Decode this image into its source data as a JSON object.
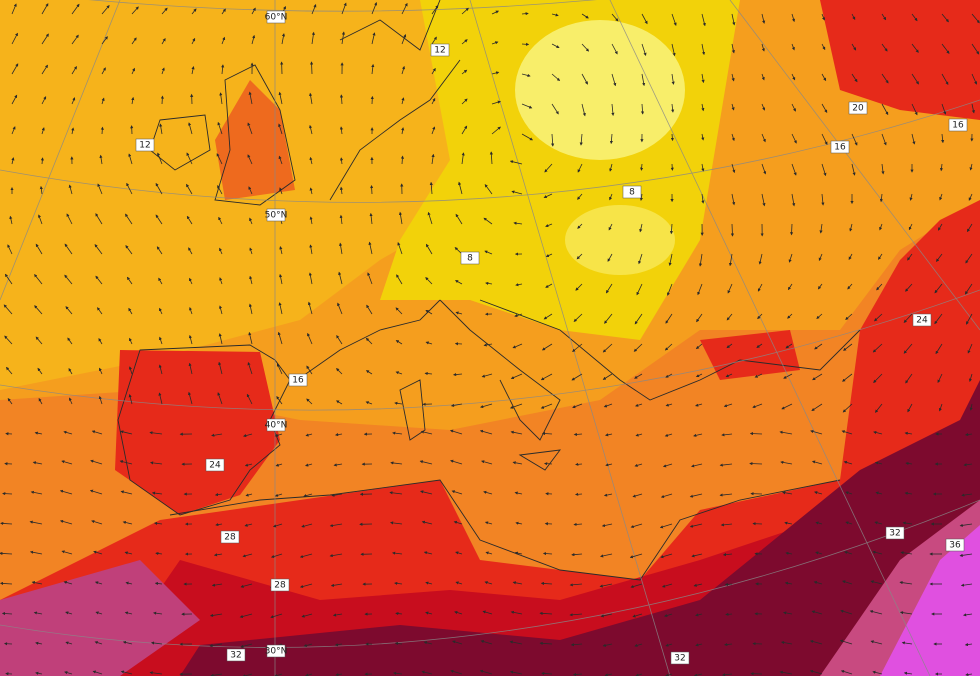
{
  "latitude_labels": [
    "60°N",
    "50°N",
    "40°N",
    "30°N"
  ],
  "contour_labels": [
    "12",
    "12",
    "20",
    "16",
    "8",
    "8",
    "16",
    "24",
    "28",
    "28",
    "32",
    "24",
    "32",
    "32",
    "36",
    "16"
  ]
}
